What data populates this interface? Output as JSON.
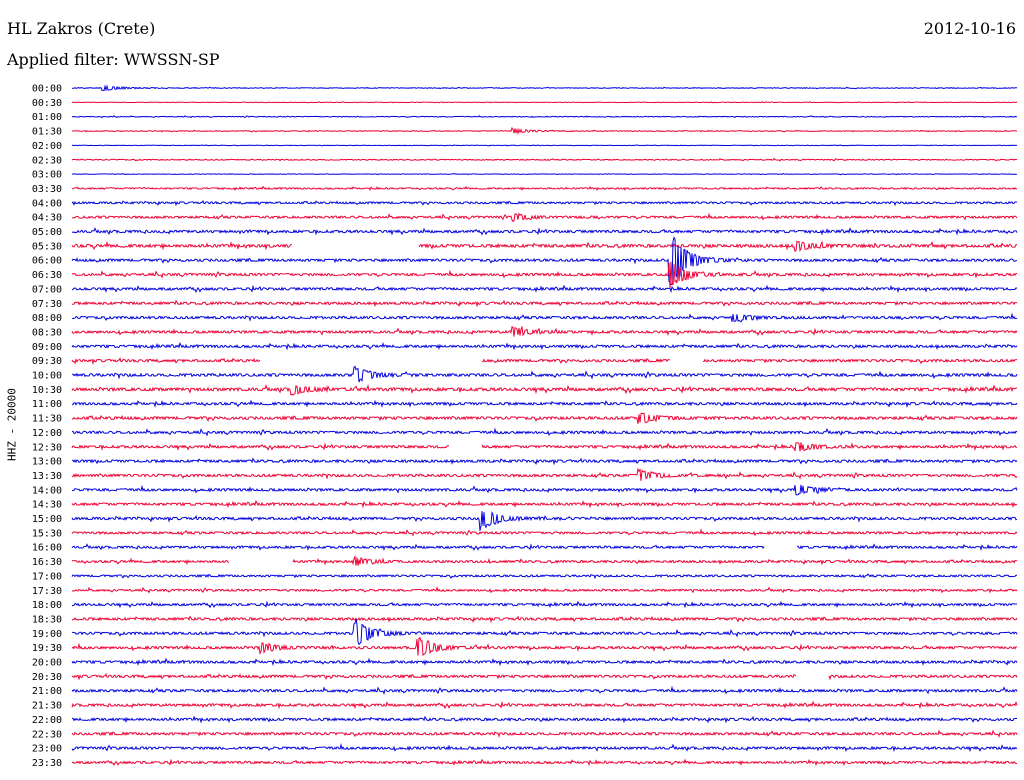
{
  "header": {
    "station": "HL Zakros (Crete)",
    "date": "2012-10-16",
    "filter": "Applied filter: WWSSN-SP"
  },
  "chart_data": {
    "type": "line",
    "title": "HL Zakros (Crete)",
    "subtitle": "Applied filter: WWSSN-SP",
    "date": "2012-10-16",
    "ylabel": "HHZ - 20000",
    "xlabel": "",
    "row_labels": [
      "00:00",
      "00:30",
      "01:00",
      "01:30",
      "02:00",
      "02:30",
      "03:00",
      "03:30",
      "04:00",
      "04:30",
      "05:00",
      "05:30",
      "06:00",
      "06:30",
      "07:00",
      "07:30",
      "08:00",
      "08:30",
      "09:00",
      "09:30",
      "10:00",
      "10:30",
      "11:00",
      "11:30",
      "12:00",
      "12:30",
      "13:00",
      "13:30",
      "14:00",
      "14:30",
      "15:00",
      "15:30",
      "16:00",
      "16:30",
      "17:00",
      "17:30",
      "18:00",
      "18:30",
      "19:00",
      "19:30",
      "20:00",
      "20:30",
      "21:00",
      "21:30",
      "22:00",
      "22:30",
      "23:00",
      "23:30"
    ],
    "series_colors": [
      "#0000e0",
      "#ee0033"
    ],
    "noise_levels": [
      0.3,
      0.2,
      0.3,
      0.3,
      0.2,
      0.4,
      0.2,
      0.6,
      0.8,
      0.9,
      1.0,
      1.2,
      1.0,
      1.0,
      1.0,
      1.0,
      1.0,
      1.0,
      1.0,
      1.0,
      1.1,
      1.2,
      1.0,
      1.1,
      1.0,
      1.0,
      1.0,
      1.0,
      1.0,
      1.0,
      1.0,
      0.9,
      0.9,
      0.9,
      0.8,
      0.8,
      0.9,
      1.0,
      1.0,
      1.0,
      1.0,
      1.0,
      1.0,
      1.0,
      1.0,
      1.0,
      1.0,
      0.9
    ],
    "events": [
      {
        "row": 0,
        "minute": 1,
        "amplitude": 3
      },
      {
        "row": 3,
        "minute": 14,
        "amplitude": 3
      },
      {
        "row": 9,
        "minute": 14,
        "amplitude": 4
      },
      {
        "row": 11,
        "minute": 23,
        "amplitude": 5
      },
      {
        "row": 12,
        "minute": 19,
        "amplitude": 30
      },
      {
        "row": 13,
        "minute": 19,
        "amplitude": 14
      },
      {
        "row": 16,
        "minute": 21,
        "amplitude": 4
      },
      {
        "row": 17,
        "minute": 14,
        "amplitude": 5
      },
      {
        "row": 20,
        "minute": 9,
        "amplitude": 8
      },
      {
        "row": 21,
        "minute": 7,
        "amplitude": 5
      },
      {
        "row": 23,
        "minute": 18,
        "amplitude": 6
      },
      {
        "row": 25,
        "minute": 23,
        "amplitude": 5
      },
      {
        "row": 27,
        "minute": 18,
        "amplitude": 6
      },
      {
        "row": 28,
        "minute": 23,
        "amplitude": 5
      },
      {
        "row": 30,
        "minute": 13,
        "amplitude": 11
      },
      {
        "row": 33,
        "minute": 9,
        "amplitude": 4
      },
      {
        "row": 38,
        "minute": 9,
        "amplitude": 14
      },
      {
        "row": 39,
        "minute": 11,
        "amplitude": 10
      },
      {
        "row": 39,
        "minute": 6,
        "amplitude": 5
      }
    ],
    "gaps": [
      {
        "row": 11,
        "from_minute": 7,
        "to_minute": 11
      },
      {
        "row": 19,
        "from_minute": 6,
        "to_minute": 13
      },
      {
        "row": 19,
        "from_minute": 19,
        "to_minute": 20
      },
      {
        "row": 25,
        "from_minute": 12,
        "to_minute": 13
      },
      {
        "row": 32,
        "from_minute": 22,
        "to_minute": 23
      },
      {
        "row": 33,
        "from_minute": 5,
        "to_minute": 7
      },
      {
        "row": 41,
        "from_minute": 23,
        "to_minute": 24
      }
    ]
  }
}
